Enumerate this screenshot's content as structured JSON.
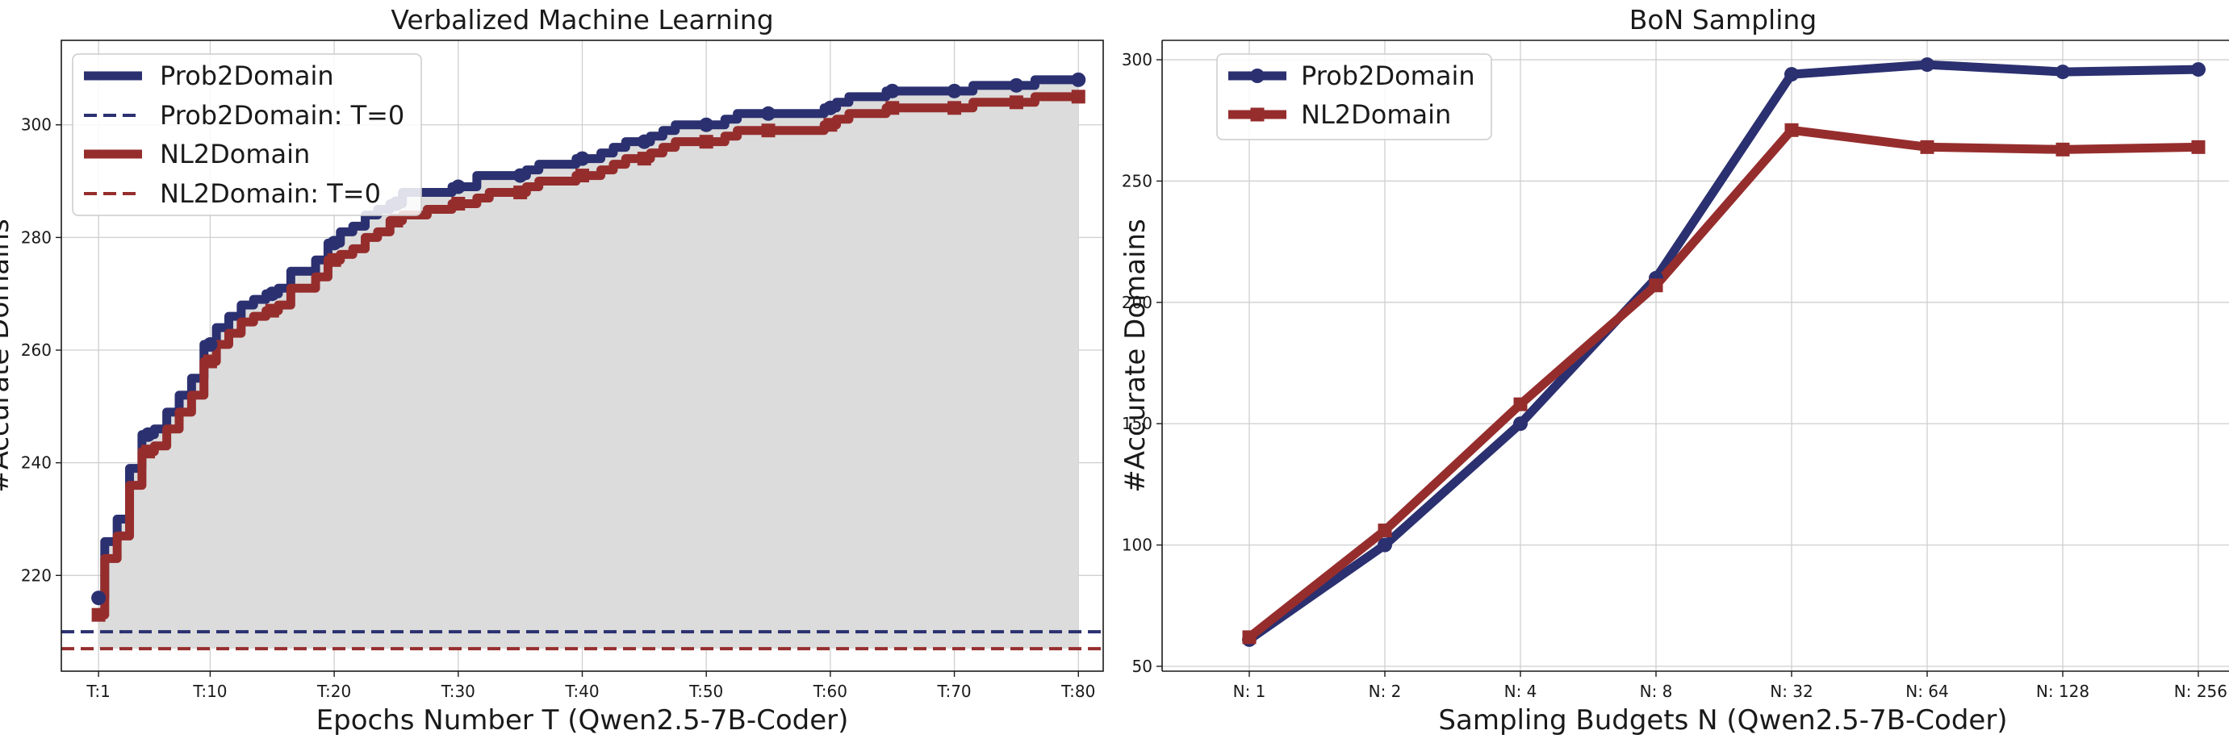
{
  "colors": {
    "prob2domain": "#2b3070",
    "nl2domain": "#962d2d",
    "fill": "#dcdcdc",
    "grid": "#cfcfcf"
  },
  "chart_data": [
    {
      "type": "line",
      "title": "Verbalized Machine Learning",
      "xlabel": "Epochs Number T (Qwen2.5-7B-Coder)",
      "ylabel": "#Accurate Domains",
      "xlim": [
        -2,
        82
      ],
      "ylim": [
        203,
        315
      ],
      "grid": true,
      "legend_position": "top-left",
      "xticks": [
        {
          "value": 1,
          "label": "T:1"
        },
        {
          "value": 10,
          "label": "T:10"
        },
        {
          "value": 20,
          "label": "T:20"
        },
        {
          "value": 30,
          "label": "T:30"
        },
        {
          "value": 40,
          "label": "T:40"
        },
        {
          "value": 50,
          "label": "T:50"
        },
        {
          "value": 60,
          "label": "T:60"
        },
        {
          "value": 70,
          "label": "T:70"
        },
        {
          "value": 80,
          "label": "T:80"
        }
      ],
      "yticks": [
        220,
        240,
        260,
        280,
        300
      ],
      "series": [
        {
          "name": "Prob2Domain",
          "style": "solid",
          "color": "#2b3070",
          "marker": "circle",
          "x": [
            1,
            2,
            3,
            4,
            5,
            6,
            7,
            8,
            9,
            10,
            11,
            12,
            13,
            14,
            15,
            16,
            17,
            18,
            19,
            20,
            21,
            22,
            23,
            24,
            25,
            26,
            27,
            28,
            29,
            30,
            31,
            32,
            33,
            34,
            35,
            36,
            37,
            38,
            39,
            40,
            41,
            42,
            43,
            44,
            45,
            46,
            47,
            48,
            49,
            50,
            51,
            52,
            53,
            54,
            55,
            56,
            57,
            58,
            59,
            60,
            61,
            62,
            63,
            64,
            65,
            66,
            67,
            68,
            69,
            70,
            71,
            72,
            73,
            74,
            75,
            76,
            77,
            78,
            79,
            80
          ],
          "y": [
            216,
            226,
            230,
            239,
            245,
            246,
            249,
            252,
            255,
            261,
            264,
            266,
            268,
            269,
            270,
            271,
            274,
            274,
            276,
            279,
            281,
            282,
            284,
            285,
            286,
            288,
            288,
            288,
            288,
            289,
            289,
            291,
            291,
            291,
            291,
            292,
            293,
            293,
            293,
            294,
            294,
            295,
            296,
            297,
            297,
            298,
            299,
            300,
            300,
            300,
            300,
            301,
            302,
            302,
            302,
            302,
            302,
            302,
            302,
            303,
            304,
            305,
            305,
            305,
            306,
            306,
            306,
            306,
            306,
            306,
            306,
            307,
            307,
            307,
            307,
            307,
            308,
            308,
            308,
            308
          ],
          "marker_x": [
            1,
            5,
            10,
            15,
            20,
            25,
            30,
            35,
            40,
            45,
            50,
            55,
            60,
            65,
            70,
            75,
            80
          ]
        },
        {
          "name": "NL2Domain",
          "style": "solid",
          "color": "#962d2d",
          "marker": "square",
          "x": [
            1,
            2,
            3,
            4,
            5,
            6,
            7,
            8,
            9,
            10,
            11,
            12,
            13,
            14,
            15,
            16,
            17,
            18,
            19,
            20,
            21,
            22,
            23,
            24,
            25,
            26,
            27,
            28,
            29,
            30,
            31,
            32,
            33,
            34,
            35,
            36,
            37,
            38,
            39,
            40,
            41,
            42,
            43,
            44,
            45,
            46,
            47,
            48,
            49,
            50,
            51,
            52,
            53,
            54,
            55,
            56,
            57,
            58,
            59,
            60,
            61,
            62,
            63,
            64,
            65,
            66,
            67,
            68,
            69,
            70,
            71,
            72,
            73,
            74,
            75,
            76,
            77,
            78,
            79,
            80
          ],
          "y": [
            213,
            223,
            227,
            236,
            242,
            243,
            246,
            249,
            252,
            258,
            261,
            263,
            265,
            266,
            267,
            268,
            271,
            271,
            273,
            276,
            277,
            278,
            280,
            281,
            283,
            284,
            284,
            285,
            285,
            286,
            286,
            287,
            288,
            288,
            288,
            289,
            290,
            290,
            290,
            291,
            291,
            292,
            293,
            294,
            294,
            295,
            296,
            297,
            297,
            297,
            297,
            298,
            299,
            299,
            299,
            299,
            299,
            299,
            299,
            300,
            301,
            302,
            302,
            302,
            303,
            303,
            303,
            303,
            303,
            303,
            303,
            304,
            304,
            304,
            304,
            304,
            305,
            305,
            305,
            305
          ],
          "marker_x": [
            1,
            5,
            10,
            15,
            20,
            25,
            30,
            35,
            40,
            45,
            50,
            55,
            60,
            65,
            70,
            75,
            80
          ]
        },
        {
          "name": "Prob2Domain: T=0",
          "style": "dashed",
          "color": "#2b3070",
          "y_const": 210
        },
        {
          "name": "NL2Domain: T=0",
          "style": "dashed",
          "color": "#962d2d",
          "y_const": 207
        }
      ]
    },
    {
      "type": "line",
      "title": "BoN Sampling",
      "xlabel": "Sampling Budgets N (Qwen2.5-7B-Coder)",
      "ylabel": "#Accurate Domains",
      "categories": [
        "N: 1",
        "N: 2",
        "N: 4",
        "N: 8",
        "N: 32",
        "N: 64",
        "N: 128",
        "N: 256"
      ],
      "ylim": [
        48,
        308
      ],
      "yticks": [
        50,
        100,
        150,
        200,
        250,
        300
      ],
      "grid": true,
      "legend_position": "top-left",
      "series": [
        {
          "name": "Prob2Domain",
          "color": "#2b3070",
          "marker": "circle",
          "values": [
            61,
            100,
            150,
            210,
            294,
            298,
            295,
            296
          ]
        },
        {
          "name": "NL2Domain",
          "color": "#962d2d",
          "marker": "square",
          "values": [
            62,
            106,
            158,
            207,
            271,
            264,
            263,
            264
          ]
        }
      ]
    }
  ]
}
